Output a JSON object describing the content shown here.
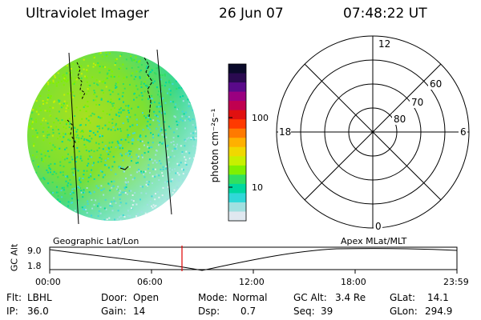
{
  "header": {
    "title": "Ultraviolet Imager",
    "date": "26 Jun 07",
    "time": "07:48:22 UT"
  },
  "colorbar": {
    "unit_label": "photon cm⁻²s⁻¹",
    "tick_100": "100",
    "tick_10": "10",
    "colors": [
      "#0a0a2a",
      "#2a0a50",
      "#5a0a8a",
      "#9a0080",
      "#c00050",
      "#e01010",
      "#ff3a00",
      "#ff7a00",
      "#ffb000",
      "#f0d800",
      "#c8f000",
      "#80f000",
      "#30e060",
      "#00d8a0",
      "#30d8d8",
      "#a0e0e0",
      "#e0e8f0"
    ]
  },
  "polar": {
    "mlt_12": "12",
    "mlt_18": "18",
    "mlt_6": "6",
    "mlt_0": "0",
    "lat_60": "60",
    "lat_70": "70",
    "lat_80": "80"
  },
  "orbit": {
    "y_label": "GC Alt",
    "y_max": "9.0",
    "y_min": "1.8",
    "left_label": "Geographic Lat/Lon",
    "right_label": "Apex MLat/MLT",
    "x_ticks": [
      "00:00",
      "06:00",
      "12:00",
      "18:00",
      "23:59"
    ],
    "current_marker_color": "#e00000"
  },
  "info": {
    "flt_label": "Flt:",
    "flt": "LBHL",
    "ip_label": "IP:",
    "ip": "36.0",
    "door_label": "Door:",
    "door": "Open",
    "gain_label": "Gain:",
    "gain": "14",
    "mode_label": "Mode:",
    "mode": "Normal",
    "dsp_label": "Dsp:",
    "dsp": "0.7",
    "gcalt_label": "GC Alt:",
    "gcalt": "3.4 Re",
    "seq_label": "Seq:",
    "seq": "39",
    "glat_label": "GLat:",
    "glat": "14.1",
    "glon_label": "GLon:",
    "glon": "294.9"
  }
}
